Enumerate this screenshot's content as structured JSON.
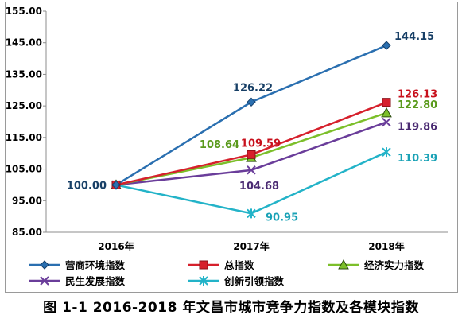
{
  "caption": "图 1-1    2016-2018 年文昌市城市竞争力指数及各模块指数",
  "chart_data": {
    "type": "line",
    "categories": [
      "2016年",
      "2017年",
      "2018年"
    ],
    "ylim": [
      85,
      155
    ],
    "yticks": [
      "85.00",
      "95.00",
      "105.00",
      "115.00",
      "125.00",
      "135.00",
      "145.00",
      "155.00"
    ],
    "grid": false,
    "legend": "bottom",
    "series": [
      {
        "name": "营商环境指数",
        "values": [
          100.0,
          126.22,
          144.15
        ],
        "labels": [
          "",
          "126.22",
          "144.15"
        ],
        "color": "#2a6fb0",
        "marker": "diamond"
      },
      {
        "name": "总指数",
        "values": [
          100.0,
          109.59,
          126.13
        ],
        "labels": [
          "",
          "109.59",
          "126.13"
        ],
        "color": "#d6202c",
        "marker": "square"
      },
      {
        "name": "经济实力指数",
        "values": [
          100.0,
          108.64,
          122.8
        ],
        "labels": [
          "",
          "108.64",
          "122.80"
        ],
        "color": "#7cbf2a",
        "marker": "triangle"
      },
      {
        "name": "民生发展指数",
        "values": [
          100.0,
          104.68,
          119.86
        ],
        "labels": [
          "",
          "104.68",
          "119.86"
        ],
        "color": "#6a3d9a",
        "marker": "x"
      },
      {
        "name": "创新引领指数",
        "values": [
          100.0,
          90.95,
          110.39
        ],
        "labels": [
          "",
          "90.95",
          "110.39"
        ],
        "color": "#23b3c8",
        "marker": "star"
      }
    ],
    "annotations": [
      {
        "text": "100.00",
        "category": "2016年",
        "value": 100.0
      }
    ]
  }
}
